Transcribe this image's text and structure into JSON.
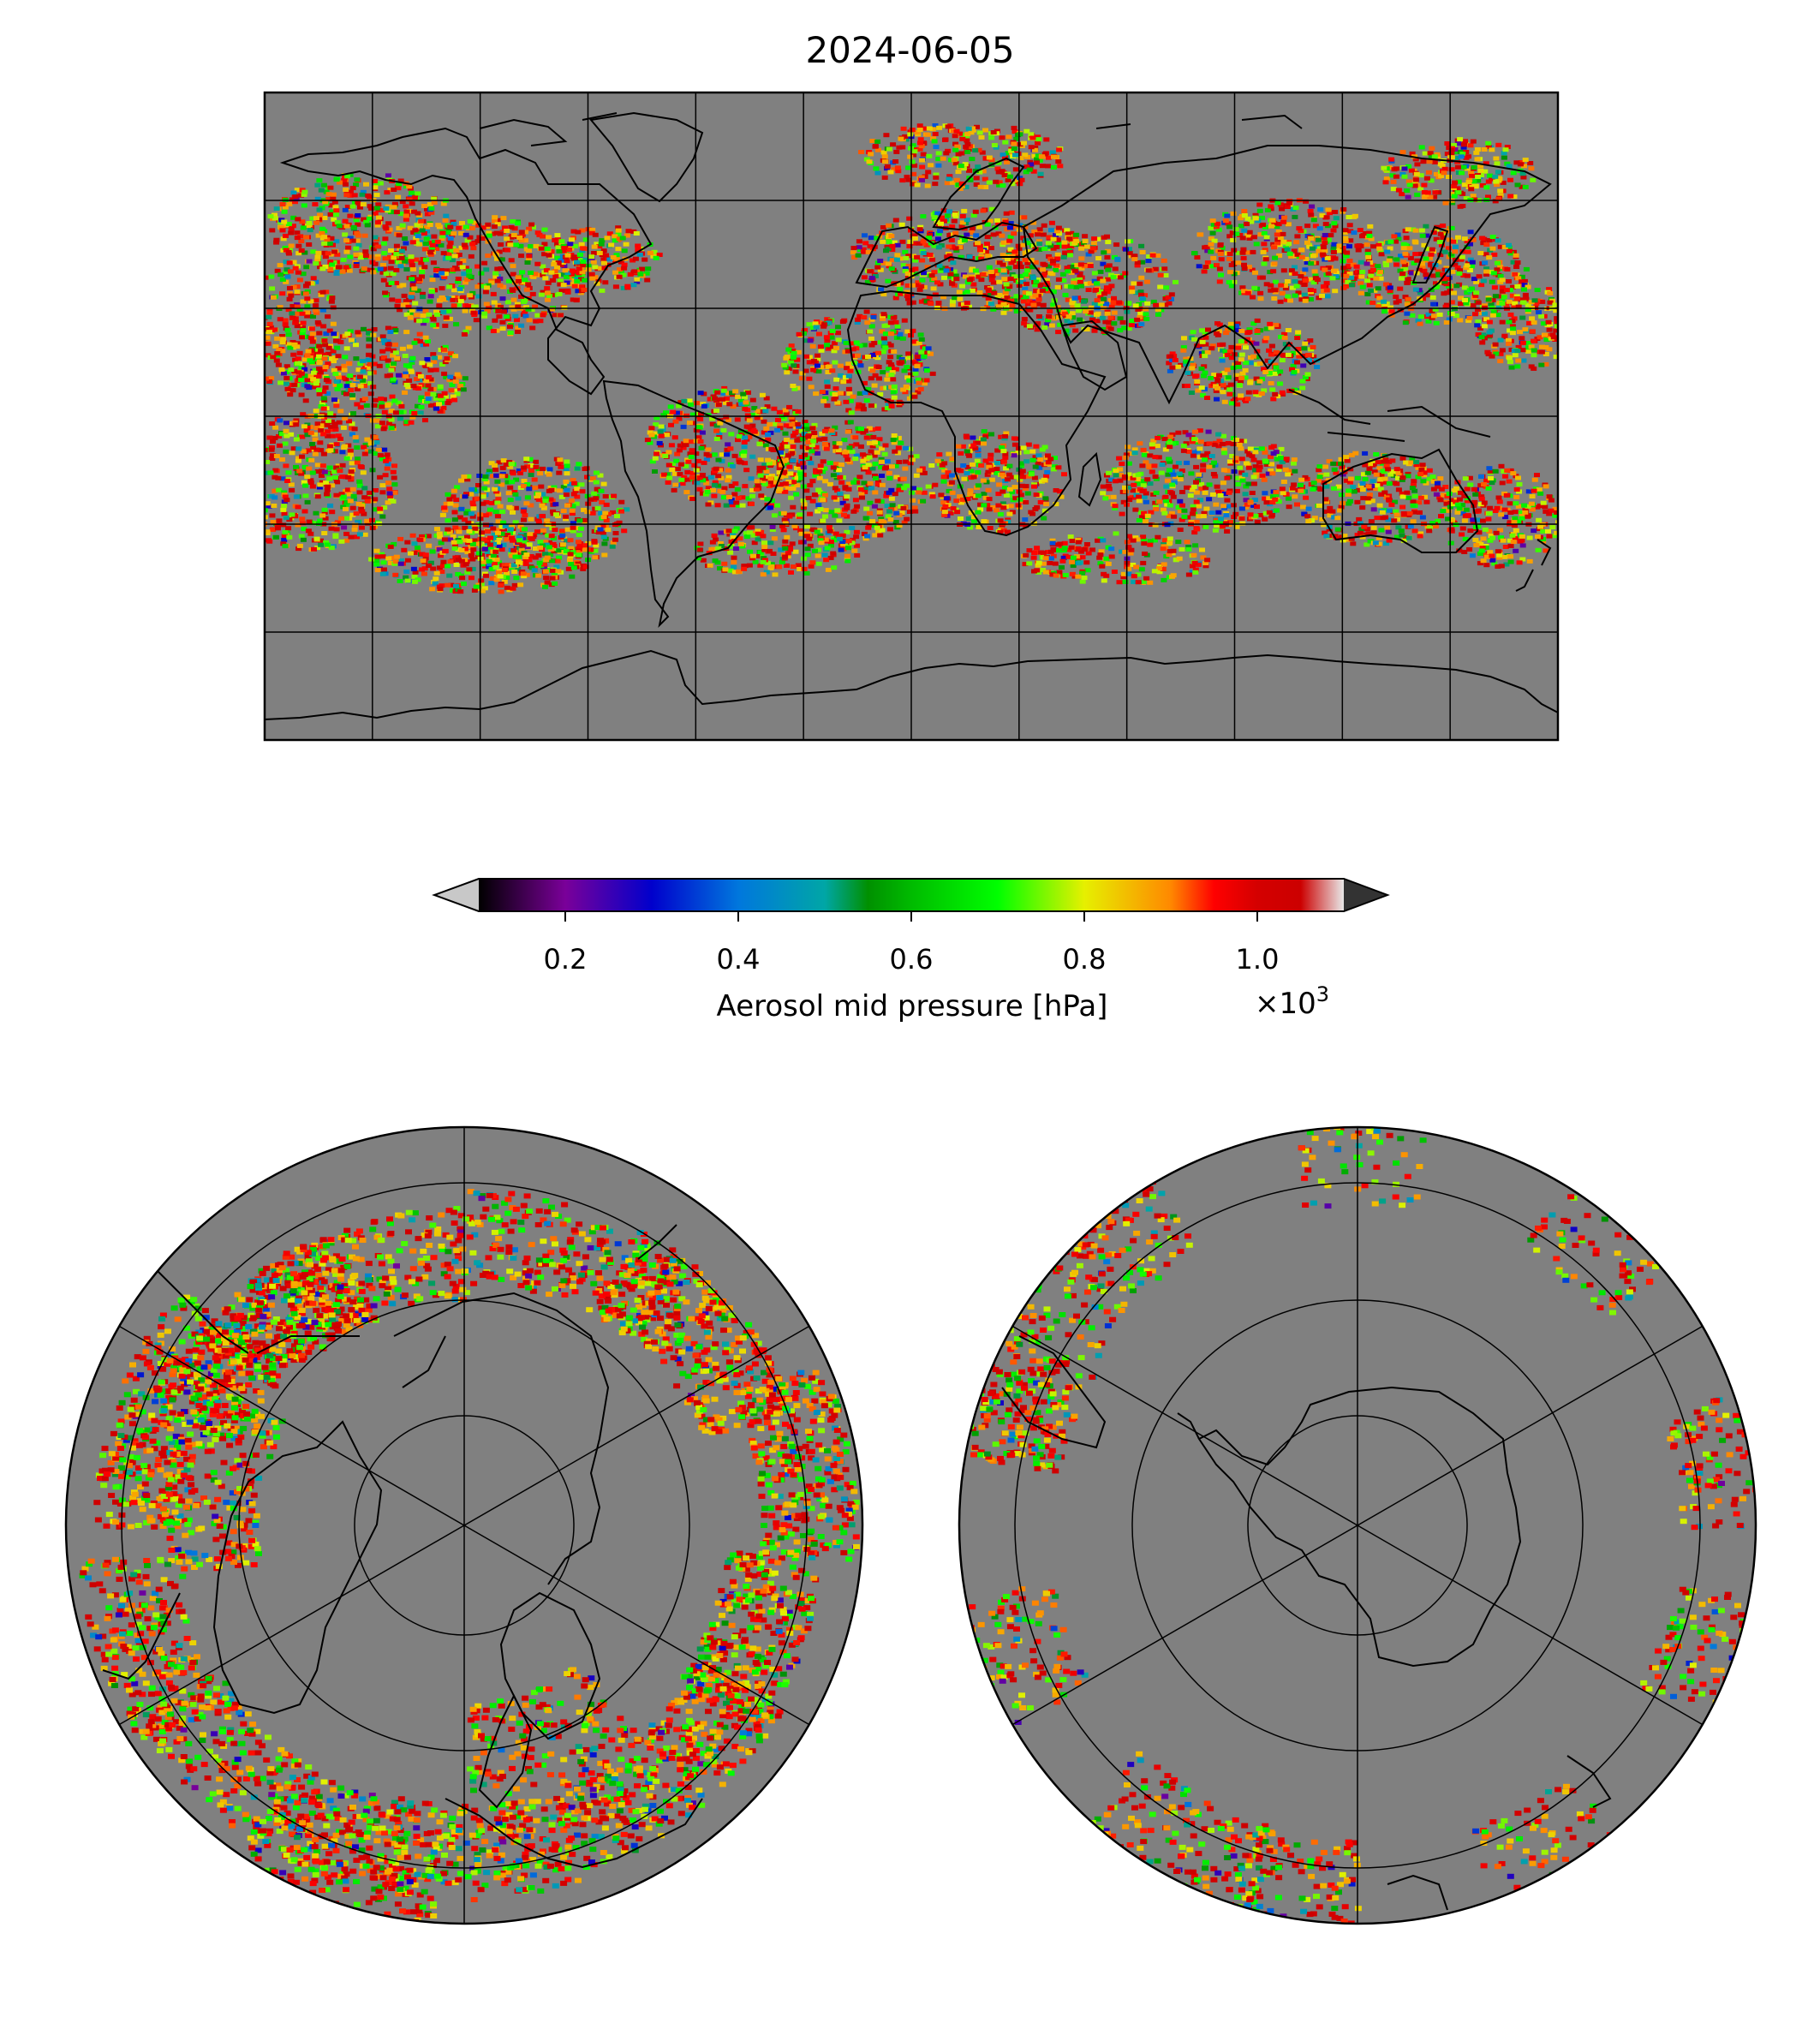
{
  "title": "2024-06-05",
  "colorbar": {
    "label": "Aerosol mid pressure [hPa]",
    "multiplier_prefix": "×10",
    "multiplier_exp": "3",
    "range": [
      0.1,
      1.1
    ],
    "extend": "both",
    "under_color": "#c8c8c8",
    "over_color": "#333333",
    "ticks": [
      {
        "value": 0.2,
        "label": "0.2"
      },
      {
        "value": 0.4,
        "label": "0.4"
      },
      {
        "value": 0.6,
        "label": "0.6"
      },
      {
        "value": 0.8,
        "label": "0.8"
      },
      {
        "value": 1.0,
        "label": "1.0"
      }
    ],
    "stops": [
      {
        "value": 0.1,
        "color": "#000000"
      },
      {
        "value": 0.2,
        "color": "#7a0099"
      },
      {
        "value": 0.3,
        "color": "#0000cc"
      },
      {
        "value": 0.4,
        "color": "#0077dd"
      },
      {
        "value": 0.5,
        "color": "#00a6a6"
      },
      {
        "value": 0.55,
        "color": "#009000"
      },
      {
        "value": 0.6,
        "color": "#00bb00"
      },
      {
        "value": 0.7,
        "color": "#00ff00"
      },
      {
        "value": 0.8,
        "color": "#e6f000"
      },
      {
        "value": 0.9,
        "color": "#ff8800"
      },
      {
        "value": 0.95,
        "color": "#ff0000"
      },
      {
        "value": 1.0,
        "color": "#d40000"
      },
      {
        "value": 1.05,
        "color": "#cc0000"
      },
      {
        "value": 1.1,
        "color": "#e8e8e8"
      }
    ]
  },
  "maps": {
    "background": "#808080",
    "global": {
      "projection": "plate-carree"
    },
    "north": {
      "projection": "north-polar-stereographic"
    },
    "south": {
      "projection": "south-polar-stereographic"
    }
  }
}
